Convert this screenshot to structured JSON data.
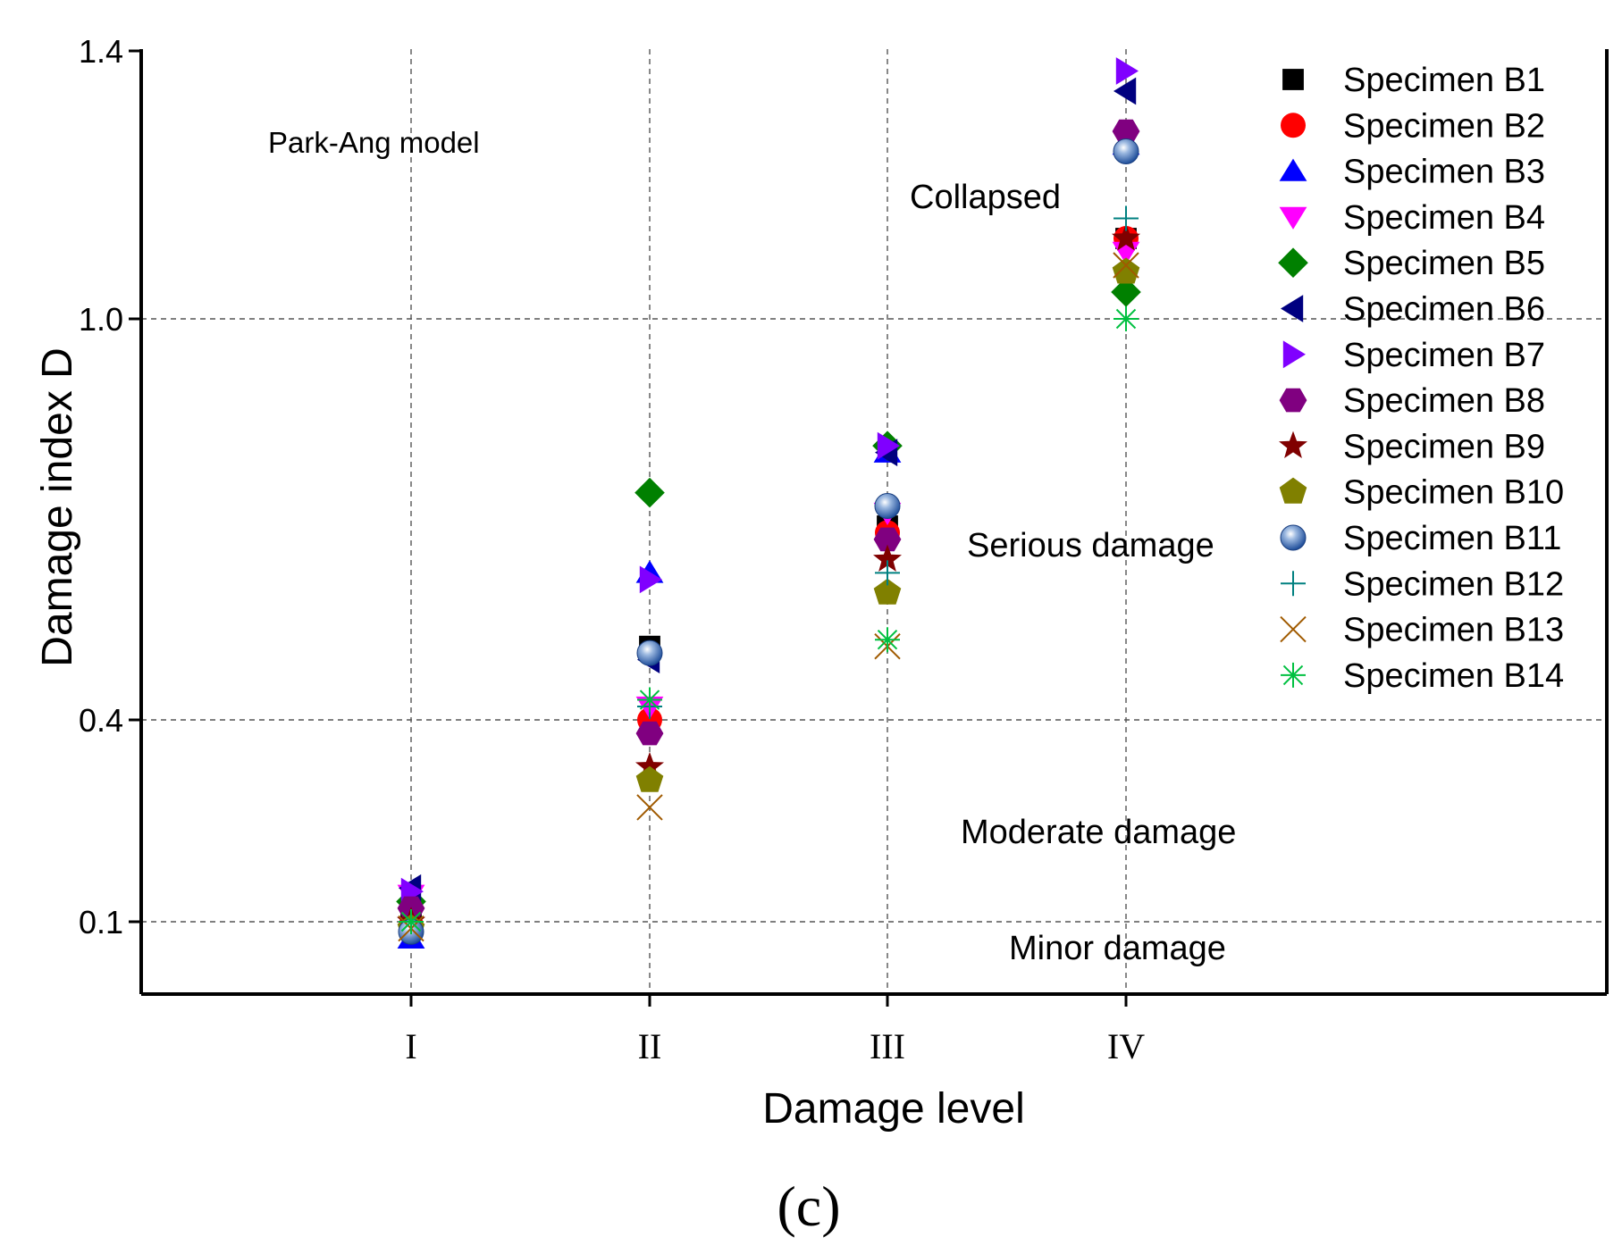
{
  "chart_data": {
    "type": "scatter",
    "title": "",
    "xlabel": "Damage level",
    "ylabel": "Damage index D",
    "categories": [
      "I",
      "II",
      "III",
      "IV"
    ],
    "y_ticks": [
      0.1,
      0.4,
      1.0,
      1.4
    ],
    "y_tick_labels": [
      "0.1",
      "0.4",
      "1.0",
      "1.4"
    ],
    "y_scale_note": "non-linear axis; tick positions 0.1, 0.4, 1.0, 1.4",
    "grid": true,
    "legend_position": "top-right",
    "model_label": "Park-Ang model",
    "zone_labels": [
      {
        "text": "Collapsed",
        "level": "IV-left",
        "y": 1.19
      },
      {
        "text": "Serious damage",
        "level": "III-right",
        "y": 0.66
      },
      {
        "text": "Moderate damage",
        "level": "III-right",
        "y": 0.245
      },
      {
        "text": "Minor damage",
        "level": "III-right",
        "y": 0.066
      }
    ],
    "series": [
      {
        "name": "Specimen B1",
        "color": "#000000",
        "marker": "square",
        "values": [
          0.1,
          0.51,
          0.69,
          1.12
        ]
      },
      {
        "name": "Specimen B2",
        "color": "#ff0000",
        "marker": "circle",
        "values": [
          0.095,
          0.4,
          0.68,
          1.12
        ]
      },
      {
        "name": "Specimen B3",
        "color": "#0000ff",
        "marker": "triangle-up",
        "values": [
          0.075,
          0.62,
          0.8,
          1.26
        ]
      },
      {
        "name": "Specimen B4",
        "color": "#ff00ff",
        "marker": "triangle-down",
        "values": [
          0.14,
          0.42,
          0.71,
          1.1
        ]
      },
      {
        "name": "Specimen B5",
        "color": "#008000",
        "marker": "diamond",
        "values": [
          0.13,
          0.74,
          0.81,
          1.04
        ]
      },
      {
        "name": "Specimen B6",
        "color": "#000080",
        "marker": "triangle-left",
        "values": [
          0.15,
          0.49,
          0.8,
          1.34
        ]
      },
      {
        "name": "Specimen B7",
        "color": "#8000ff",
        "marker": "triangle-right",
        "values": [
          0.145,
          0.61,
          0.81,
          1.37
        ]
      },
      {
        "name": "Specimen B8",
        "color": "#800080",
        "marker": "hexagon",
        "values": [
          0.12,
          0.38,
          0.67,
          1.28
        ]
      },
      {
        "name": "Specimen B9",
        "color": "#800000",
        "marker": "star",
        "values": [
          0.1,
          0.33,
          0.64,
          1.12
        ]
      },
      {
        "name": "Specimen B10",
        "color": "#808000",
        "marker": "pentagon",
        "values": [
          0.09,
          0.31,
          0.59,
          1.07
        ]
      },
      {
        "name": "Specimen B11",
        "color": "#2f5fa8",
        "marker": "ball",
        "values": [
          0.085,
          0.5,
          0.72,
          1.25
        ]
      },
      {
        "name": "Specimen B12",
        "color": "#008080",
        "marker": "plus",
        "values": [
          0.1,
          0.42,
          0.62,
          1.15
        ]
      },
      {
        "name": "Specimen B13",
        "color": "#a05a00",
        "marker": "x",
        "values": [
          0.09,
          0.27,
          0.51,
          1.08
        ]
      },
      {
        "name": "Specimen B14",
        "color": "#00c040",
        "marker": "asterisk",
        "values": [
          0.1,
          0.43,
          0.52,
          1.0
        ]
      }
    ],
    "panel_label": "(c)"
  }
}
